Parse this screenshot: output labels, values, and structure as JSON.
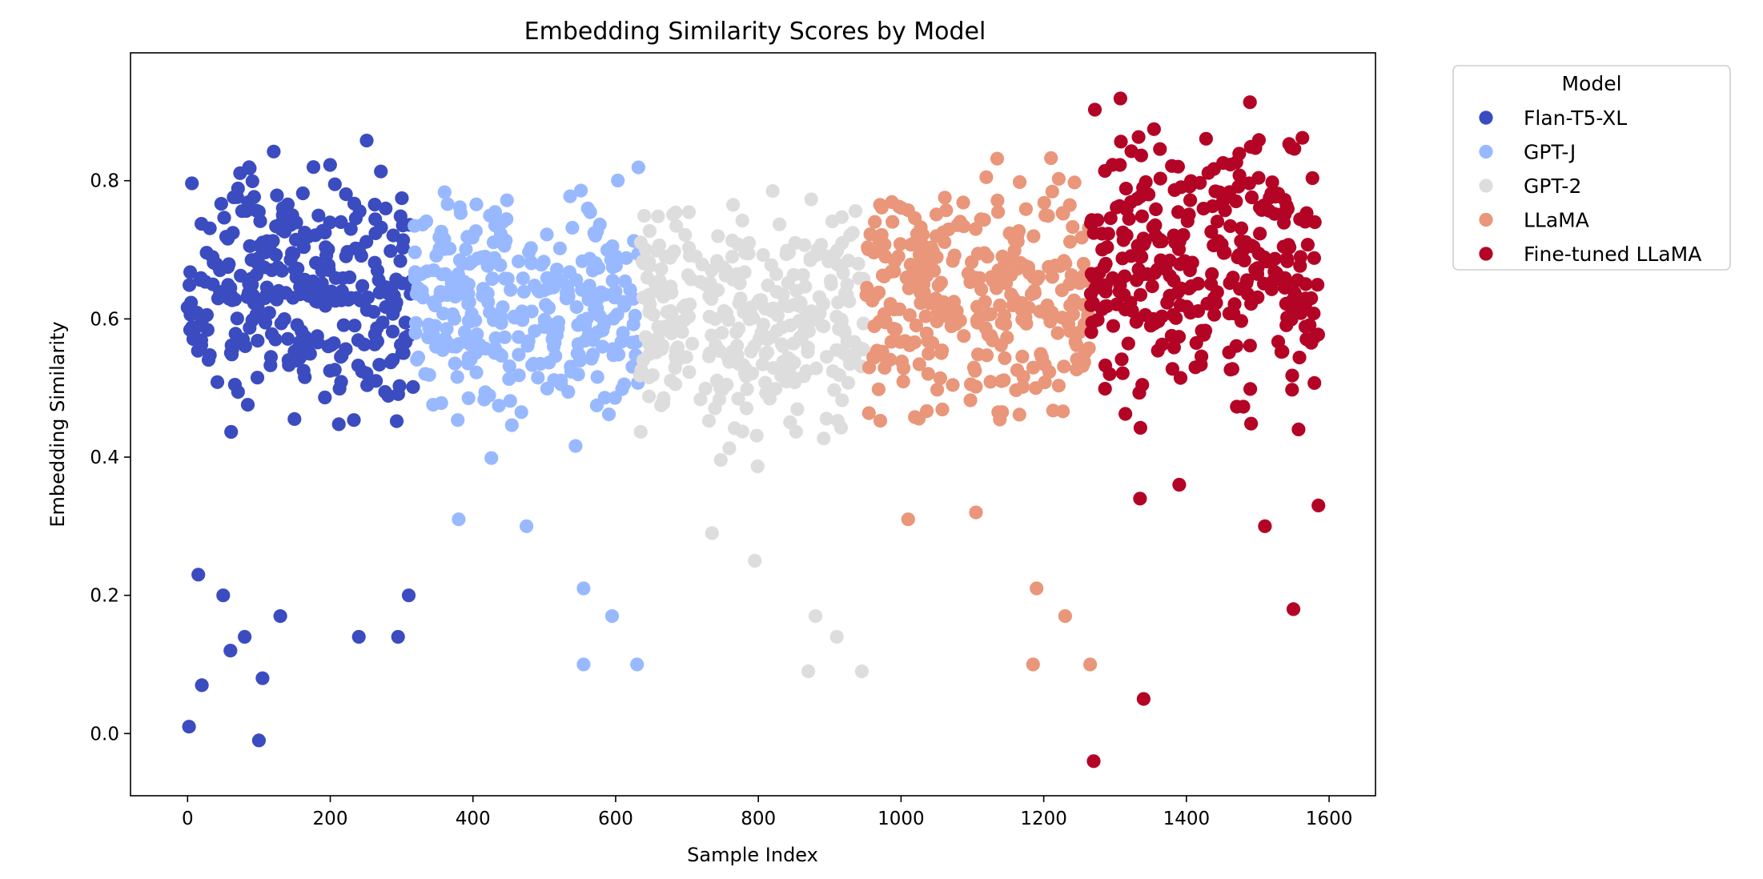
{
  "chart_data": {
    "type": "scatter",
    "title": "Embedding Similarity Scores by Model",
    "xlabel": "Sample Index",
    "ylabel": "Embedding Similarity",
    "xlim": [
      -80,
      1665
    ],
    "ylim": [
      -0.09,
      0.985
    ],
    "xticks": [
      0,
      200,
      400,
      600,
      800,
      1000,
      1200,
      1400,
      1600
    ],
    "yticks": [
      0.0,
      0.2,
      0.4,
      0.6,
      0.8
    ],
    "grid": false,
    "legend": {
      "title": "Model",
      "placement": "outside-top-right"
    },
    "series": [
      {
        "name": "Flan-T5-XL",
        "color": "#3b4cc0",
        "x_range": [
          0,
          316
        ],
        "points_per_series": 316,
        "main_band": [
          0.3,
          0.87
        ],
        "low_outliers": [
          [
            15,
            0.23
          ],
          [
            50,
            0.2
          ],
          [
            80,
            0.14
          ],
          [
            105,
            0.08
          ],
          [
            130,
            0.17
          ],
          [
            240,
            0.14
          ],
          [
            295,
            0.14
          ],
          [
            310,
            0.2
          ],
          [
            2,
            0.01
          ],
          [
            100,
            -0.01
          ],
          [
            20,
            0.07
          ],
          [
            60,
            0.12
          ]
        ]
      },
      {
        "name": "GPT-J",
        "color": "#98b9ff",
        "x_range": [
          317,
          632
        ],
        "points_per_series": 316,
        "main_band": [
          0.3,
          0.83
        ],
        "low_outliers": [
          [
            555,
            0.21
          ],
          [
            595,
            0.17
          ],
          [
            555,
            0.1
          ],
          [
            630,
            0.1
          ],
          [
            380,
            0.31
          ],
          [
            475,
            0.3
          ]
        ]
      },
      {
        "name": "GPT-2",
        "color": "#dddddd",
        "x_range": [
          633,
          948
        ],
        "points_per_series": 316,
        "main_band": [
          0.28,
          0.82
        ],
        "low_outliers": [
          [
            795,
            0.25
          ],
          [
            880,
            0.17
          ],
          [
            910,
            0.14
          ],
          [
            870,
            0.09
          ],
          [
            945,
            0.09
          ],
          [
            735,
            0.29
          ]
        ]
      },
      {
        "name": "LLaMA",
        "color": "#e9967a",
        "x_range": [
          949,
          1264
        ],
        "points_per_series": 316,
        "main_band": [
          0.3,
          0.85
        ],
        "low_outliers": [
          [
            1190,
            0.21
          ],
          [
            1230,
            0.17
          ],
          [
            1185,
            0.1
          ],
          [
            1265,
            0.1
          ],
          [
            1010,
            0.31
          ],
          [
            1105,
            0.32
          ]
        ]
      },
      {
        "name": "Fine-tuned LLaMA",
        "color": "#b40426",
        "x_range": [
          1265,
          1585
        ],
        "points_per_series": 321,
        "main_band": [
          0.3,
          0.94
        ],
        "low_outliers": [
          [
            1550,
            0.18
          ],
          [
            1340,
            0.05
          ],
          [
            1270,
            -0.04
          ],
          [
            1510,
            0.3
          ],
          [
            1585,
            0.33
          ],
          [
            1335,
            0.34
          ],
          [
            1390,
            0.36
          ]
        ]
      }
    ]
  }
}
